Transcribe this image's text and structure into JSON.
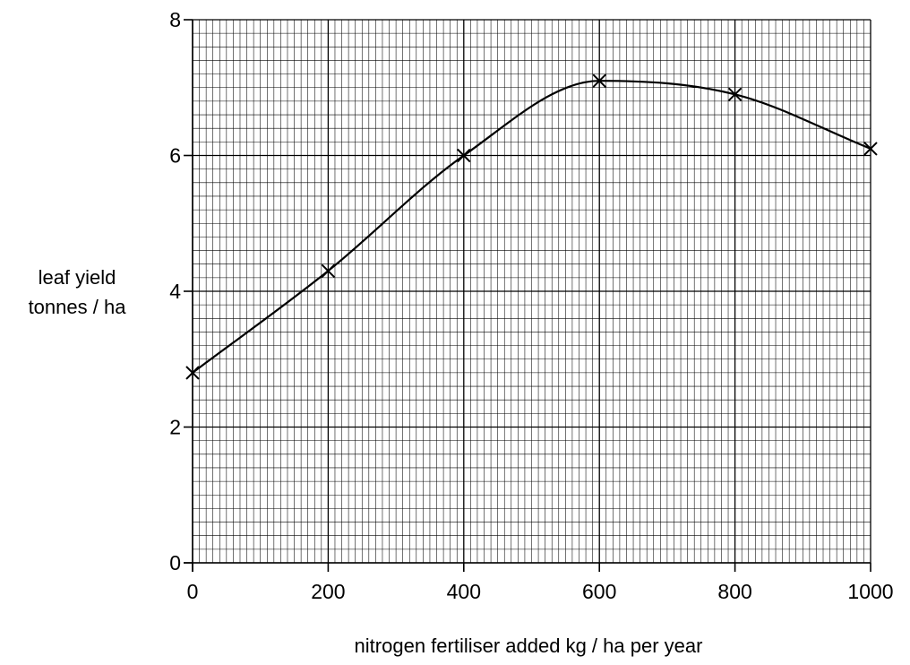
{
  "chart_data": {
    "type": "line",
    "title": "",
    "xlabel": "nitrogen fertiliser added kg / ha per year",
    "ylabel_lines": [
      "leaf yield",
      "tonnes / ha"
    ],
    "xlim": [
      0,
      1000
    ],
    "ylim": [
      0,
      8
    ],
    "x_ticks": [
      0,
      200,
      400,
      600,
      800,
      1000
    ],
    "y_ticks": [
      0,
      2,
      4,
      6,
      8
    ],
    "x_tick_labels": [
      "0",
      "200",
      "400",
      "600",
      "800",
      "1000"
    ],
    "y_tick_labels": [
      "0",
      "2",
      "4",
      "6",
      "8"
    ],
    "grid": true,
    "series": [
      {
        "x": [
          0,
          200,
          400,
          600,
          800,
          1000
        ],
        "y": [
          2.8,
          4.3,
          6.0,
          7.1,
          6.9,
          6.1
        ],
        "marker": "x",
        "line": "smooth"
      }
    ]
  }
}
